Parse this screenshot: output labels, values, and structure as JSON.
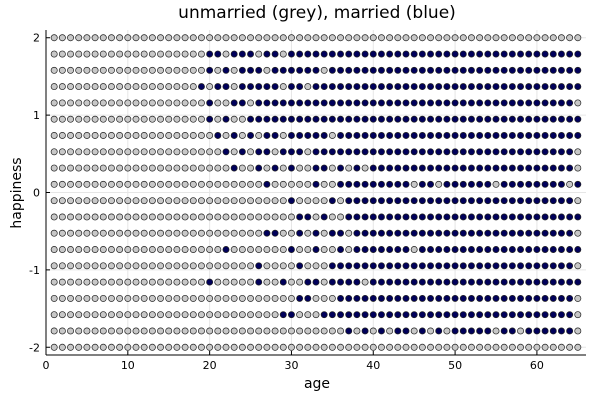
{
  "chart_data": {
    "type": "scatter",
    "title": "unmarried (grey), married (blue)",
    "xlabel": "age",
    "ylabel": "happiness",
    "xlim": [
      0,
      66
    ],
    "ylim": [
      -2.1,
      2.1
    ],
    "xticks": [
      0,
      10,
      20,
      30,
      40,
      50,
      60
    ],
    "yticks": [
      -2,
      -1,
      0,
      1,
      2
    ],
    "ytick_labels": [
      "-2",
      "-1",
      "0",
      "1",
      "2"
    ],
    "grid": true,
    "legend": "none",
    "ages": [
      1,
      65
    ],
    "happiness_levels": [
      -2.0,
      -1.7895,
      -1.5789,
      -1.3684,
      -1.1579,
      -0.9474,
      -0.7368,
      -0.5263,
      -0.3158,
      -0.1053,
      0.1053,
      0.3158,
      0.5263,
      0.7368,
      0.9474,
      1.1579,
      1.3684,
      1.5789,
      1.7895,
      2.0
    ],
    "colors": {
      "unmarried": "#c8c8c8",
      "married": "#00005a",
      "marker_edge": "#222222"
    },
    "married_points": {
      "2.0": [
        20,
        22,
        23,
        25,
        26,
        28,
        29,
        31,
        32,
        34,
        35,
        36,
        37,
        38,
        39,
        40,
        41,
        42,
        43,
        44,
        45,
        46,
        47,
        48,
        49,
        50,
        51,
        52,
        53,
        54,
        55,
        56,
        57,
        58,
        59,
        60,
        61,
        62,
        63,
        64,
        65
      ],
      "1.7895": [
        20,
        21,
        23,
        24,
        25,
        27,
        28,
        30,
        31,
        32,
        33,
        34,
        35,
        36,
        37,
        38,
        39,
        40,
        41,
        42,
        43,
        44,
        45,
        46,
        47,
        48,
        49,
        50,
        51,
        52,
        53,
        54,
        55,
        56,
        57,
        58,
        59,
        60,
        61,
        62,
        63,
        64,
        65
      ],
      "1.5789": [
        20,
        22,
        24,
        25,
        26,
        28,
        29,
        30,
        31,
        32,
        33,
        35,
        36,
        37,
        38,
        39,
        40,
        41,
        42,
        43,
        44,
        45,
        46,
        47,
        48,
        49,
        50,
        51,
        52,
        53,
        54,
        55,
        56,
        57,
        58,
        59,
        60,
        61,
        62,
        63,
        64,
        65
      ],
      "1.3684": [
        19,
        21,
        22,
        24,
        25,
        26,
        27,
        28,
        30,
        31,
        33,
        34,
        35,
        36,
        37,
        38,
        39,
        40,
        41,
        42,
        43,
        44,
        45,
        46,
        47,
        48,
        49,
        50,
        51,
        52,
        53,
        54,
        55,
        56,
        57,
        58,
        59,
        60,
        61,
        62,
        63,
        64,
        65
      ],
      "1.1579": [
        20,
        23,
        24,
        26,
        27,
        28,
        29,
        30,
        31,
        32,
        33,
        34,
        35,
        36,
        37,
        38,
        39,
        40,
        41,
        42,
        43,
        44,
        45,
        46,
        47,
        48,
        49,
        50,
        51,
        52,
        53,
        54,
        55,
        56,
        57,
        58,
        59,
        60,
        61,
        62,
        63,
        64
      ],
      "0.9474": [
        20,
        22,
        25,
        26,
        27,
        28,
        29,
        30,
        31,
        32,
        33,
        34,
        35,
        36,
        37,
        38,
        39,
        40,
        41,
        42,
        43,
        44,
        45,
        46,
        47,
        48,
        49,
        50,
        51,
        52,
        53,
        54,
        55,
        56,
        57,
        58,
        59,
        60,
        61,
        62,
        63,
        64,
        65
      ],
      "0.7368": [
        21,
        23,
        25,
        27,
        28,
        30,
        31,
        32,
        33,
        34,
        36,
        37,
        38,
        39,
        40,
        41,
        42,
        43,
        44,
        45,
        46,
        47,
        48,
        49,
        50,
        51,
        52,
        53,
        54,
        55,
        56,
        57,
        58,
        59,
        60,
        61,
        62,
        63,
        64,
        65
      ],
      "0.5263": [
        22,
        24,
        26,
        27,
        29,
        30,
        31,
        33,
        34,
        35,
        36,
        37,
        38,
        39,
        40,
        41,
        42,
        43,
        44,
        45,
        46,
        47,
        48,
        49,
        50,
        51,
        52,
        53,
        54,
        55,
        56,
        57,
        58,
        59,
        60,
        61,
        62,
        63,
        64
      ],
      "0.3158": [
        23,
        26,
        28,
        30,
        33,
        34,
        36,
        38,
        40,
        41,
        42,
        43,
        44,
        45,
        46,
        47,
        48,
        49,
        50,
        51,
        52,
        53,
        54,
        55,
        56,
        57,
        58,
        59,
        60,
        61,
        62,
        63,
        64
      ],
      "0.1053": [
        27,
        33,
        36,
        37,
        38,
        39,
        40,
        41,
        42,
        43,
        44,
        46,
        47,
        49,
        50,
        51,
        52,
        53,
        54,
        56,
        57,
        58,
        59,
        60,
        61,
        62,
        63,
        65
      ],
      "-0.1053": [
        30,
        35,
        37,
        38,
        39,
        40,
        41,
        42,
        43,
        44,
        45,
        46,
        47,
        48,
        49,
        50,
        51,
        52,
        53,
        54,
        55,
        56,
        57,
        58,
        59,
        60,
        61,
        62,
        63,
        64
      ],
      "-0.3158": [
        31,
        32,
        34,
        37,
        38,
        39,
        40,
        41,
        42,
        43,
        44,
        45,
        46,
        47,
        48,
        49,
        50,
        51,
        52,
        53,
        54,
        55,
        56,
        57,
        58,
        59,
        60,
        61,
        62,
        63,
        64,
        65
      ],
      "-0.5263": [
        27,
        28,
        31,
        33,
        35,
        36,
        38,
        39,
        40,
        41,
        42,
        43,
        44,
        45,
        46,
        47,
        48,
        49,
        50,
        51,
        52,
        53,
        54,
        55,
        56,
        57,
        58,
        59,
        60,
        61,
        62,
        63,
        64
      ],
      "-0.7368": [
        22,
        30,
        33,
        36,
        38,
        39,
        40,
        41,
        42,
        43,
        44,
        46,
        47,
        48,
        49,
        50,
        51,
        52,
        53,
        54,
        55,
        56,
        57,
        58,
        59,
        60,
        61,
        62,
        63,
        64,
        65
      ],
      "-0.9474": [
        26,
        31,
        35,
        36,
        37,
        38,
        39,
        40,
        41,
        42,
        43,
        44,
        45,
        46,
        47,
        48,
        49,
        50,
        51,
        52,
        53,
        54,
        55,
        56,
        57,
        58,
        59,
        60,
        61,
        62,
        63,
        64
      ],
      "-1.1579": [
        20,
        26,
        29,
        32,
        33,
        35,
        36,
        37,
        38,
        40,
        41,
        42,
        43,
        44,
        45,
        46,
        47,
        48,
        49,
        50,
        51,
        52,
        53,
        54,
        55,
        56,
        57,
        58,
        59,
        60,
        61,
        62,
        63,
        64,
        65
      ],
      "-1.3684": [
        31,
        32,
        36,
        37,
        38,
        39,
        40,
        41,
        42,
        43,
        44,
        45,
        46,
        47,
        48,
        49,
        50,
        51,
        52,
        53,
        54,
        55,
        56,
        57,
        58,
        59,
        60,
        61,
        62,
        63,
        64
      ],
      "-1.5789": [
        29,
        30,
        34,
        35,
        36,
        37,
        38,
        39,
        40,
        41,
        42,
        43,
        44,
        45,
        46,
        47,
        48,
        49,
        50,
        51,
        52,
        53,
        54,
        55,
        56,
        57,
        58,
        59,
        60,
        61,
        62,
        63,
        64
      ],
      "-1.7895": [
        37,
        39,
        41,
        43,
        44,
        46,
        48,
        50,
        51,
        52,
        53,
        54,
        56,
        57,
        59,
        60,
        61,
        62,
        63,
        64
      ],
      "-2.0": [
        56
      ]
    }
  }
}
